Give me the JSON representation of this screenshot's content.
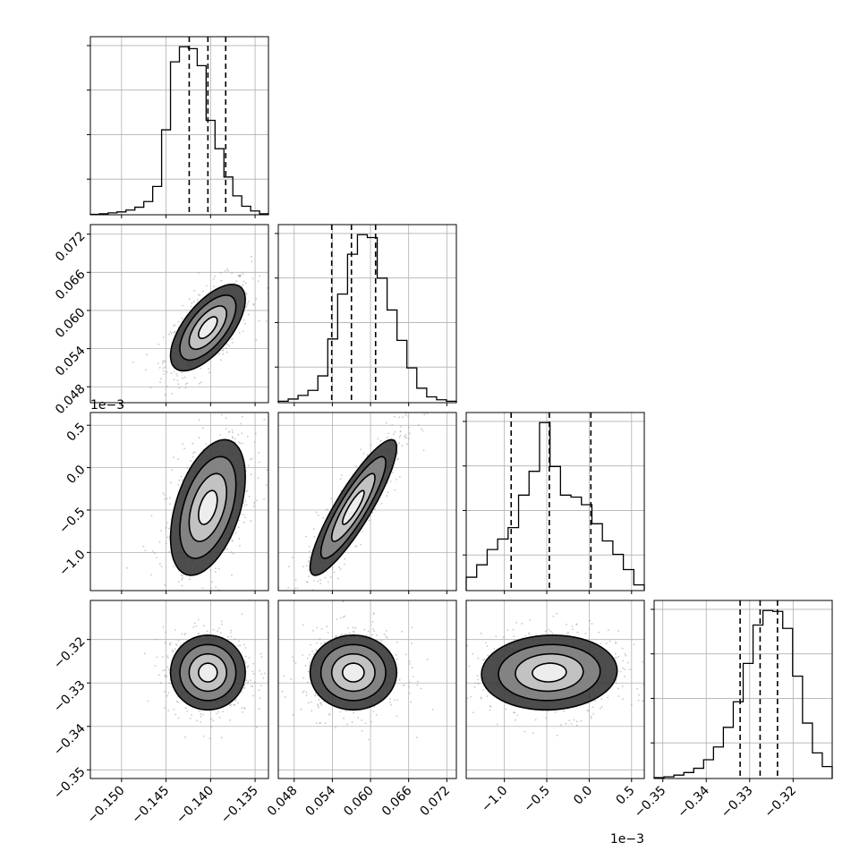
{
  "chart_data": {
    "type": "corner",
    "description_levels": "1D histograms on diagonal with 16/50/84 percentile dashed lines; 2D density contours below diagonal",
    "grid": true,
    "parameters": [
      {
        "index": 0,
        "range": [
          -0.1535,
          -0.1335
        ],
        "ticks": [
          -0.15,
          -0.145,
          -0.14,
          -0.135
        ],
        "tick_labels": [
          "−0.150",
          "−0.145",
          "−0.140",
          "−0.135"
        ],
        "offset_text": "",
        "quantiles": [
          -0.1424,
          -0.1403,
          -0.1383
        ]
      },
      {
        "index": 1,
        "range": [
          0.0455,
          0.0735
        ],
        "ticks": [
          0.048,
          0.054,
          0.06,
          0.066,
          0.072
        ],
        "tick_labels": [
          "0.048",
          "0.054",
          "0.060",
          "0.066",
          "0.072"
        ],
        "offset_text": "",
        "quantiles": [
          0.0539,
          0.057,
          0.0608
        ]
      },
      {
        "index": 2,
        "range": [
          -1.45,
          0.65
        ],
        "ticks": [
          -1.0,
          -0.5,
          0.0,
          0.5
        ],
        "tick_labels": [
          "−1.0",
          "−0.5",
          "0.0",
          "0.5"
        ],
        "offset_text": "1e−3",
        "quantiles": [
          -0.92,
          -0.47,
          0.02
        ]
      },
      {
        "index": 3,
        "range": [
          -0.352,
          -0.311
        ],
        "ticks": [
          -0.35,
          -0.34,
          -0.33,
          -0.32
        ],
        "tick_labels": [
          "−0.35",
          "−0.34",
          "−0.33",
          "−0.32"
        ],
        "offset_text": "",
        "quantiles": [
          -0.3322,
          -0.3276,
          -0.3236
        ]
      }
    ],
    "histograms": [
      [
        0.5,
        1,
        2,
        3,
        5,
        8,
        14,
        30,
        90,
        162,
        178,
        176,
        158,
        100,
        70,
        40,
        20,
        9,
        4,
        1
      ],
      [
        2,
        5,
        10,
        17,
        37,
        88,
        150,
        205,
        232,
        228,
        172,
        128,
        86,
        48,
        20,
        8,
        4,
        2
      ],
      [
        14,
        27,
        43,
        54,
        66,
        100,
        125,
        176,
        130,
        100,
        98,
        90,
        70,
        52,
        38,
        22,
        6
      ],
      [
        1,
        2,
        4,
        7,
        12,
        22,
        37,
        60,
        90,
        135,
        180,
        197,
        196,
        176,
        120,
        65,
        30,
        14
      ]
    ],
    "pairs": [
      {
        "x": 0,
        "y": 1,
        "rho": 0.65,
        "mean": [
          -0.1403,
          0.0573
        ],
        "sd": [
          0.0021,
          0.0034
        ]
      },
      {
        "x": 0,
        "y": 2,
        "rho": 0.45,
        "mean": [
          -0.1403,
          -0.47
        ],
        "sd": [
          0.0021,
          0.4
        ]
      },
      {
        "x": 1,
        "y": 2,
        "rho": 0.88,
        "mean": [
          0.0573,
          -0.47
        ],
        "sd": [
          0.0034,
          0.4
        ]
      },
      {
        "x": 0,
        "y": 3,
        "rho": 0.0,
        "mean": [
          -0.1403,
          -0.3276
        ],
        "sd": [
          0.0021,
          0.0043
        ]
      },
      {
        "x": 1,
        "y": 3,
        "rho": 0.0,
        "mean": [
          0.0573,
          -0.3276
        ],
        "sd": [
          0.0034,
          0.0043
        ]
      },
      {
        "x": 2,
        "y": 3,
        "rho": 0.05,
        "mean": [
          -0.47,
          -0.3276
        ],
        "sd": [
          0.4,
          0.0043
        ]
      }
    ],
    "contour_levels": [
      0.5,
      1.0,
      1.5,
      2.0
    ]
  }
}
